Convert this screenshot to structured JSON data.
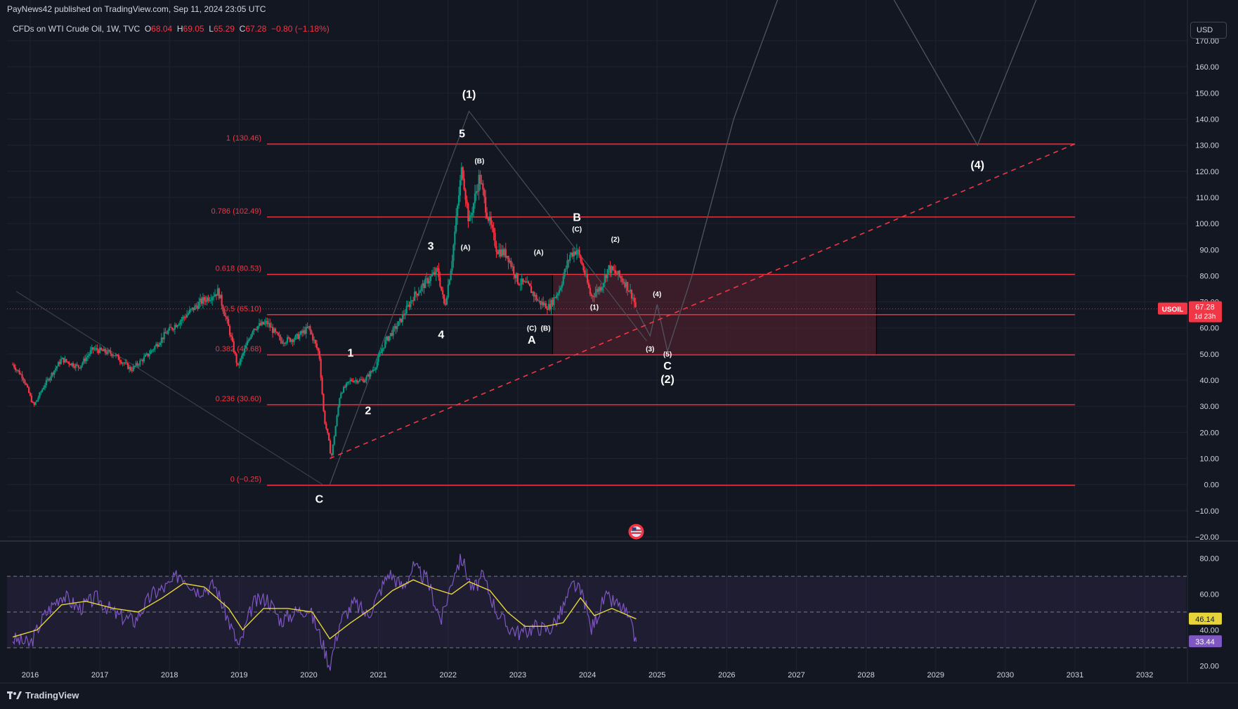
{
  "header": {
    "published": "PayNews42 published on TradingView.com, Sep 11, 2024 23:05 UTC",
    "symbol_title": "CFDs on WTI Crude Oil, 1W, TVC",
    "ohlc": {
      "o_label": "O",
      "o": "68.04",
      "h_label": "H",
      "h": "69.05",
      "l_label": "L",
      "l": "65.29",
      "c_label": "C",
      "c": "67.28",
      "change": "−0.80 (−1.18%)"
    },
    "currency": "USD"
  },
  "branding": {
    "logo_text": "TradingView"
  },
  "colors": {
    "bg": "#131722",
    "fib": "#f23645",
    "up": "#089981",
    "down": "#f23645",
    "rsi": "#7e57c2",
    "rsi_ma": "#e6d43a",
    "box": "#5b2230"
  },
  "chart_data": [
    {
      "type": "line",
      "name_hint": "price",
      "y_range": [
        -20,
        170
      ],
      "x_range": [
        2015.8,
        2032.8
      ],
      "x_ticks": [
        "2016",
        "2017",
        "2018",
        "2019",
        "2020",
        "2021",
        "2022",
        "2023",
        "2024",
        "2025",
        "2026",
        "2027",
        "2028",
        "2029",
        "2030",
        "2031",
        "2032"
      ],
      "y_ticks": [
        "−20.00",
        "−10.00",
        "0.00",
        "10.00",
        "20.00",
        "30.00",
        "40.00",
        "50.00",
        "60.00",
        "70.00",
        "80.00",
        "90.00",
        "100.00",
        "110.00",
        "120.00",
        "130.00",
        "140.00",
        "150.00",
        "160.00",
        "170.00"
      ],
      "price_path": [
        [
          2015.75,
          46
        ],
        [
          2015.9,
          41
        ],
        [
          2016.05,
          30
        ],
        [
          2016.2,
          38
        ],
        [
          2016.45,
          48
        ],
        [
          2016.7,
          45
        ],
        [
          2016.9,
          52
        ],
        [
          2017.2,
          50
        ],
        [
          2017.45,
          44
        ],
        [
          2017.7,
          50
        ],
        [
          2017.95,
          58
        ],
        [
          2018.2,
          64
        ],
        [
          2018.45,
          70
        ],
        [
          2018.7,
          74
        ],
        [
          2018.85,
          60
        ],
        [
          2018.98,
          45
        ],
        [
          2019.2,
          60
        ],
        [
          2019.4,
          62
        ],
        [
          2019.6,
          55
        ],
        [
          2019.8,
          56
        ],
        [
          2020.0,
          60
        ],
        [
          2020.15,
          50
        ],
        [
          2020.22,
          25
        ],
        [
          2020.28,
          18
        ],
        [
          2020.32,
          10
        ],
        [
          2020.45,
          35
        ],
        [
          2020.6,
          40
        ],
        [
          2020.8,
          40
        ],
        [
          2020.95,
          45
        ],
        [
          2021.1,
          55
        ],
        [
          2021.3,
          62
        ],
        [
          2021.5,
          72
        ],
        [
          2021.7,
          78
        ],
        [
          2021.85,
          82
        ],
        [
          2021.95,
          68
        ],
        [
          2022.05,
          85
        ],
        [
          2022.15,
          110
        ],
        [
          2022.2,
          122
        ],
        [
          2022.3,
          100
        ],
        [
          2022.45,
          118
        ],
        [
          2022.55,
          105
        ],
        [
          2022.7,
          90
        ],
        [
          2022.85,
          88
        ],
        [
          2023.0,
          78
        ],
        [
          2023.15,
          76
        ],
        [
          2023.3,
          70
        ],
        [
          2023.45,
          68
        ],
        [
          2023.6,
          75
        ],
        [
          2023.75,
          88
        ],
        [
          2023.85,
          90
        ],
        [
          2023.95,
          82
        ],
        [
          2024.05,
          72
        ],
        [
          2024.2,
          76
        ],
        [
          2024.3,
          83
        ],
        [
          2024.45,
          80
        ],
        [
          2024.55,
          77
        ],
        [
          2024.65,
          72
        ],
        [
          2024.7,
          67.28
        ]
      ],
      "last_price": "67.28",
      "last_price_sub": "1d 23h",
      "symbol_tag": "USOIL",
      "fib_levels": [
        {
          "label": "1 (130.46)",
          "value": 130.46
        },
        {
          "label": "0.786 (102.49)",
          "value": 102.49
        },
        {
          "label": "0.618 (80.53)",
          "value": 80.53
        },
        {
          "label": "0.5 (65.10)",
          "value": 65.1
        },
        {
          "label": "0.382 (49.68)",
          "value": 49.68
        },
        {
          "label": "0.236 (30.60)",
          "value": 30.6
        },
        {
          "label": "0 (−0.25)",
          "value": -0.25
        }
      ],
      "box": {
        "x_start": 2023.5,
        "x_end": 2028.15,
        "y_top": 80.53,
        "y_bottom": 49.68
      },
      "trendline": {
        "from": [
          2020.3,
          10
        ],
        "to": [
          2031.0,
          130.5
        ],
        "style": "dashed"
      },
      "wave_labels": [
        {
          "text": "(1)",
          "x": 2022.3,
          "y": 148,
          "size": "large"
        },
        {
          "text": "5",
          "x": 2022.2,
          "y": 133,
          "size": "large"
        },
        {
          "text": "(B)",
          "x": 2022.45,
          "y": 123,
          "size": "small"
        },
        {
          "text": "(A)",
          "x": 2022.25,
          "y": 90,
          "size": "small"
        },
        {
          "text": "3",
          "x": 2021.75,
          "y": 90,
          "size": "large"
        },
        {
          "text": "4",
          "x": 2021.9,
          "y": 56,
          "size": "large"
        },
        {
          "text": "1",
          "x": 2020.6,
          "y": 49,
          "size": "large"
        },
        {
          "text": "2",
          "x": 2020.85,
          "y": 27,
          "size": "large"
        },
        {
          "text": "C",
          "x": 2020.15,
          "y": -7,
          "size": "large"
        },
        {
          "text": "(A)",
          "x": 2023.3,
          "y": 88,
          "size": "small"
        },
        {
          "text": "(C)",
          "x": 2023.2,
          "y": 59,
          "size": "small"
        },
        {
          "text": "(B)",
          "x": 2023.4,
          "y": 59,
          "size": "small"
        },
        {
          "text": "A",
          "x": 2023.2,
          "y": 54,
          "size": "large"
        },
        {
          "text": "B",
          "x": 2023.85,
          "y": 101,
          "size": "large"
        },
        {
          "text": "(C)",
          "x": 2023.85,
          "y": 97,
          "size": "small"
        },
        {
          "text": "(2)",
          "x": 2024.4,
          "y": 93,
          "size": "small"
        },
        {
          "text": "(1)",
          "x": 2024.1,
          "y": 67,
          "size": "small"
        },
        {
          "text": "(4)",
          "x": 2025.0,
          "y": 72,
          "size": "small"
        },
        {
          "text": "(3)",
          "x": 2024.9,
          "y": 51,
          "size": "small"
        },
        {
          "text": "(5)",
          "x": 2025.15,
          "y": 49,
          "size": "small"
        },
        {
          "text": "C",
          "x": 2025.15,
          "y": 44,
          "size": "large"
        },
        {
          "text": "(2)",
          "x": 2025.15,
          "y": 39,
          "size": "large"
        },
        {
          "text": "(4)",
          "x": 2029.6,
          "y": 121,
          "size": "large"
        }
      ],
      "projection_path": [
        [
          2024.7,
          67
        ],
        [
          2024.9,
          57
        ],
        [
          2025.0,
          69
        ],
        [
          2025.15,
          51
        ],
        [
          2025.5,
          80
        ],
        [
          2026.1,
          140
        ],
        [
          2026.9,
          198
        ]
      ],
      "projection_path_2": [
        [
          2028.2,
          195
        ],
        [
          2029.6,
          130
        ],
        [
          2030.6,
          196
        ]
      ],
      "elliott_outline": [
        [
          2020.3,
          0
        ],
        [
          2022.3,
          143
        ],
        [
          2024.85,
          55
        ]
      ],
      "left_decline_line": [
        [
          2015.8,
          74
        ],
        [
          2020.2,
          0
        ]
      ]
    },
    {
      "type": "line",
      "name_hint": "rsi",
      "y_range": [
        15,
        85
      ],
      "y_ticks": [
        "20.00",
        "40.00",
        "60.00",
        "80.00"
      ],
      "bands": [
        30,
        50,
        70
      ],
      "rsi_path": [
        [
          2015.75,
          35
        ],
        [
          2016.0,
          32
        ],
        [
          2016.2,
          48
        ],
        [
          2016.45,
          60
        ],
        [
          2016.7,
          52
        ],
        [
          2016.95,
          58
        ],
        [
          2017.25,
          48
        ],
        [
          2017.5,
          45
        ],
        [
          2017.75,
          60
        ],
        [
          2018.0,
          65
        ],
        [
          2018.15,
          72
        ],
        [
          2018.4,
          62
        ],
        [
          2018.65,
          65
        ],
        [
          2018.85,
          45
        ],
        [
          2019.0,
          30
        ],
        [
          2019.2,
          55
        ],
        [
          2019.4,
          58
        ],
        [
          2019.6,
          45
        ],
        [
          2019.8,
          50
        ],
        [
          2020.0,
          52
        ],
        [
          2020.15,
          38
        ],
        [
          2020.3,
          20
        ],
        [
          2020.45,
          45
        ],
        [
          2020.65,
          55
        ],
        [
          2020.85,
          48
        ],
        [
          2021.0,
          60
        ],
        [
          2021.15,
          72
        ],
        [
          2021.35,
          64
        ],
        [
          2021.5,
          75
        ],
        [
          2021.7,
          68
        ],
        [
          2021.9,
          45
        ],
        [
          2022.1,
          74
        ],
        [
          2022.2,
          80
        ],
        [
          2022.35,
          62
        ],
        [
          2022.5,
          70
        ],
        [
          2022.7,
          50
        ],
        [
          2022.85,
          42
        ],
        [
          2023.05,
          38
        ],
        [
          2023.25,
          42
        ],
        [
          2023.45,
          40
        ],
        [
          2023.6,
          48
        ],
        [
          2023.8,
          66
        ],
        [
          2023.95,
          58
        ],
        [
          2024.05,
          40
        ],
        [
          2024.25,
          58
        ],
        [
          2024.4,
          55
        ],
        [
          2024.55,
          50
        ],
        [
          2024.7,
          33.44
        ]
      ],
      "rsi_ma_path": [
        [
          2015.75,
          36
        ],
        [
          2016.1,
          40
        ],
        [
          2016.45,
          54
        ],
        [
          2016.8,
          56
        ],
        [
          2017.2,
          52
        ],
        [
          2017.55,
          50
        ],
        [
          2017.9,
          58
        ],
        [
          2018.2,
          66
        ],
        [
          2018.5,
          64
        ],
        [
          2018.85,
          52
        ],
        [
          2019.05,
          40
        ],
        [
          2019.35,
          52
        ],
        [
          2019.7,
          52
        ],
        [
          2020.05,
          50
        ],
        [
          2020.3,
          35
        ],
        [
          2020.6,
          44
        ],
        [
          2020.9,
          52
        ],
        [
          2021.2,
          62
        ],
        [
          2021.5,
          68
        ],
        [
          2021.8,
          63
        ],
        [
          2022.05,
          60
        ],
        [
          2022.3,
          67
        ],
        [
          2022.6,
          62
        ],
        [
          2022.85,
          50
        ],
        [
          2023.1,
          42
        ],
        [
          2023.4,
          42
        ],
        [
          2023.65,
          44
        ],
        [
          2023.9,
          58
        ],
        [
          2024.1,
          48
        ],
        [
          2024.35,
          52
        ],
        [
          2024.7,
          46.14
        ]
      ],
      "rsi_value": "33.44",
      "rsi_ma_value": "46.14"
    }
  ]
}
